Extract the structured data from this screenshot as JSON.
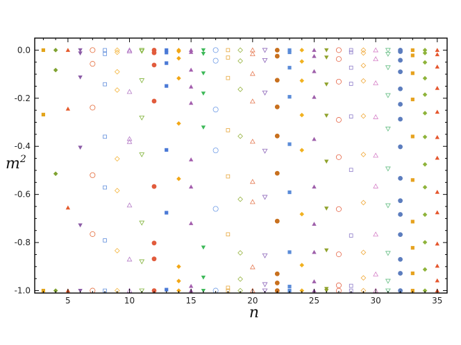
{
  "chart_data": {
    "type": "scatter",
    "title": "",
    "xlabel": "n",
    "ylabel_base": "m",
    "ylabel_exp": "2",
    "xlim": [
      2.3,
      35.8
    ],
    "ylim": [
      -1.01,
      0.05
    ],
    "xticks": [
      5,
      10,
      15,
      20,
      25,
      30,
      35
    ],
    "xtick_labels": [
      "5",
      "10",
      "15",
      "20",
      "25",
      "30",
      "35"
    ],
    "yticks": [
      0.0,
      -0.2,
      -0.4,
      -0.6,
      -0.8,
      -1.0
    ],
    "ytick_labels": [
      "0.0",
      "-0.2",
      "-0.4",
      "-0.6",
      "-0.8",
      "-1.0"
    ],
    "grid": false,
    "marker_cycle": [
      {
        "marker": "square-filled",
        "color": "#E2A41A"
      },
      {
        "marker": "diamond-filled",
        "color": "#7FA231"
      },
      {
        "marker": "triangle-up-filled",
        "color": "#E55A2B"
      },
      {
        "marker": "triangle-down-filled",
        "color": "#8B5BA6"
      },
      {
        "marker": "circle-open",
        "color": "#E46B3A"
      },
      {
        "marker": "square-open",
        "color": "#5C8BDB"
      },
      {
        "marker": "diamond-open",
        "color": "#F4B43A"
      },
      {
        "marker": "triangle-up-open",
        "color": "#B277C4"
      },
      {
        "marker": "triangle-down-open",
        "color": "#7FB236"
      },
      {
        "marker": "circle-filled",
        "color": "#E15B3C"
      },
      {
        "marker": "square-filled",
        "color": "#4A79D6"
      },
      {
        "marker": "diamond-filled",
        "color": "#F2A716"
      },
      {
        "marker": "triangle-up-filled",
        "color": "#A45FAE"
      },
      {
        "marker": "triangle-down-filled",
        "color": "#3DB858"
      },
      {
        "marker": "circle-open",
        "color": "#6E9BE6"
      },
      {
        "marker": "square-open",
        "color": "#E7A63A"
      },
      {
        "marker": "diamond-open",
        "color": "#96B33F"
      },
      {
        "marker": "triangle-up-open",
        "color": "#E5774F"
      },
      {
        "marker": "triangle-down-open",
        "color": "#8B63B8"
      },
      {
        "marker": "circle-filled",
        "color": "#C8701E"
      },
      {
        "marker": "square-filled",
        "color": "#5A8BD8"
      },
      {
        "marker": "diamond-filled",
        "color": "#F1B11F"
      },
      {
        "marker": "triangle-up-filled",
        "color": "#9E5FAA"
      },
      {
        "marker": "triangle-down-filled",
        "color": "#8FA22C"
      },
      {
        "marker": "circle-open",
        "color": "#E6684A"
      },
      {
        "marker": "square-open",
        "color": "#8B79C8"
      },
      {
        "marker": "diamond-open",
        "color": "#F0A93A"
      },
      {
        "marker": "triangle-up-open",
        "color": "#D57FC7"
      },
      {
        "marker": "triangle-down-open",
        "color": "#61BC80"
      },
      {
        "marker": "circle-filled",
        "color": "#5C7DBE"
      },
      {
        "marker": "square-filled",
        "color": "#E6A21F"
      },
      {
        "marker": "diamond-filled",
        "color": "#8EB33A"
      },
      {
        "marker": "triangle-up-filled",
        "color": "#E5562D"
      }
    ],
    "series": [
      {
        "n": 3,
        "y": [
          0.0,
          -0.268,
          -1.0
        ]
      },
      {
        "n": 4,
        "y": [
          0.0,
          -0.083,
          -0.514,
          -1.0
        ]
      },
      {
        "n": 5,
        "y": [
          0.0,
          -0.244,
          -0.655,
          -1.0
        ]
      },
      {
        "n": 6,
        "y": [
          0.0,
          -0.013,
          -0.113,
          -0.405,
          -0.728,
          -1.0
        ]
      },
      {
        "n": 7,
        "y": [
          0.0,
          -0.057,
          -0.239,
          -0.52,
          -0.765,
          -1.0
        ]
      },
      {
        "n": 8,
        "y": [
          0.0,
          -0.016,
          -0.142,
          -0.36,
          -0.571,
          -0.791,
          -1.0
        ]
      },
      {
        "n": 9,
        "y": [
          0.0,
          -0.009,
          -0.09,
          -0.166,
          -0.452,
          -0.584,
          -0.834,
          -1.0
        ]
      },
      {
        "n": 10,
        "y": [
          0.0,
          -0.005,
          -0.173,
          -0.369,
          -0.381,
          -0.645,
          -0.87,
          -1.0
        ]
      },
      {
        "n": 11,
        "y": [
          0.0,
          -0.004,
          -0.126,
          -0.281,
          -0.434,
          -0.718,
          -0.879,
          -1.0
        ]
      },
      {
        "n": 12,
        "y": [
          0.0,
          -0.011,
          -0.062,
          -0.212,
          -0.567,
          -0.802,
          -0.868,
          -1.0
        ]
      },
      {
        "n": 13,
        "y": [
          0.0,
          -0.01,
          -0.054,
          -0.149,
          -0.415,
          -0.676,
          -0.996
        ]
      },
      {
        "n": 14,
        "y": [
          0.0,
          -0.005,
          -0.034,
          -0.117,
          -0.305,
          -0.535,
          -0.9,
          -0.96,
          -1.0
        ]
      },
      {
        "n": 15,
        "y": [
          0.0,
          -0.008,
          -0.082,
          -0.152,
          -0.22,
          -0.455,
          -0.568,
          -0.72,
          -0.981,
          -1.0
        ]
      },
      {
        "n": 16,
        "y": [
          0.0,
          -0.015,
          -0.096,
          -0.18,
          -0.321,
          -0.82,
          -0.945,
          -1.0
        ]
      },
      {
        "n": 17,
        "y": [
          0.0,
          -0.044,
          -0.247,
          -0.417,
          -0.66,
          -1.0
        ]
      },
      {
        "n": 18,
        "y": [
          0.0,
          -0.031,
          -0.116,
          -0.333,
          -0.525,
          -0.766,
          -0.988,
          -1.0
        ]
      },
      {
        "n": 19,
        "y": [
          0.0,
          -0.045,
          -0.163,
          -0.358,
          -0.62,
          -0.843,
          -0.952,
          -1.0
        ]
      },
      {
        "n": 20,
        "y": [
          0.0,
          -0.016,
          -0.098,
          -0.213,
          -0.38,
          -0.547,
          -0.631,
          -0.902,
          -1.0
        ]
      },
      {
        "n": 21,
        "y": [
          0.0,
          -0.042,
          -0.177,
          -0.419,
          -0.611,
          -0.854,
          -0.974,
          -1.0
        ]
      },
      {
        "n": 22,
        "y": [
          0.0,
          -0.025,
          -0.125,
          -0.236,
          -0.357,
          -0.512,
          -0.711,
          -0.93,
          -0.968,
          -1.0
        ]
      },
      {
        "n": 23,
        "y": [
          0.0,
          -0.009,
          -0.073,
          -0.194,
          -0.391,
          -0.591,
          -0.84,
          -0.983,
          -1.0
        ]
      },
      {
        "n": 24,
        "y": [
          0.0,
          -0.047,
          -0.127,
          -0.27,
          -0.416,
          -0.682,
          -0.894,
          -1.0
        ]
      },
      {
        "n": 25,
        "y": [
          0.0,
          -0.025,
          -0.088,
          -0.195,
          -0.37,
          -0.568,
          -0.723,
          -0.84,
          -0.962,
          -1.0
        ]
      },
      {
        "n": 26,
        "y": [
          0.0,
          -0.03,
          -0.142,
          -0.272,
          -0.463,
          -0.658,
          -0.832,
          -0.992,
          -1.0
        ]
      },
      {
        "n": 27,
        "y": [
          0.0,
          -0.037,
          -0.131,
          -0.29,
          -0.445,
          -0.661,
          -0.849,
          -0.978,
          -1.0
        ]
      },
      {
        "n": 28,
        "y": [
          0.0,
          -0.009,
          -0.073,
          -0.14,
          -0.276,
          -0.498,
          -0.771,
          -0.98,
          -1.0
        ]
      },
      {
        "n": 29,
        "y": [
          0.0,
          -0.012,
          -0.064,
          -0.128,
          -0.274,
          -0.434,
          -0.634,
          -0.841,
          -0.947,
          -1.0
        ]
      },
      {
        "n": 30,
        "y": [
          0.0,
          -0.037,
          -0.137,
          -0.278,
          -0.438,
          -0.566,
          -0.766,
          -0.932,
          -1.0
        ]
      },
      {
        "n": 31,
        "y": [
          0.0,
          -0.016,
          -0.072,
          -0.188,
          -0.327,
          -0.493,
          -0.646,
          -0.844,
          -0.96,
          -1.0
        ]
      },
      {
        "n": 32,
        "y": [
          0.0,
          -0.006,
          -0.042,
          -0.09,
          -0.161,
          -0.225,
          -0.287,
          -0.402,
          -0.533,
          -0.626,
          -0.683,
          -0.767,
          -0.87,
          -0.928,
          -1.0
        ]
      },
      {
        "n": 33,
        "y": [
          0.0,
          -0.022,
          -0.096,
          -0.205,
          -0.359,
          -0.54,
          -0.713,
          -0.822,
          -0.928,
          -1.0
        ]
      },
      {
        "n": 34,
        "y": [
          0.0,
          -0.012,
          -0.051,
          -0.117,
          -0.185,
          -0.262,
          -0.361,
          -0.475,
          -0.57,
          -0.684,
          -0.799,
          -0.912,
          -1.0
        ]
      },
      {
        "n": 35,
        "y": [
          0.0,
          -0.018,
          -0.069,
          -0.158,
          -0.257,
          -0.362,
          -0.448,
          -0.59,
          -0.675,
          -0.805,
          -0.897,
          -0.958,
          -1.0
        ]
      }
    ]
  }
}
